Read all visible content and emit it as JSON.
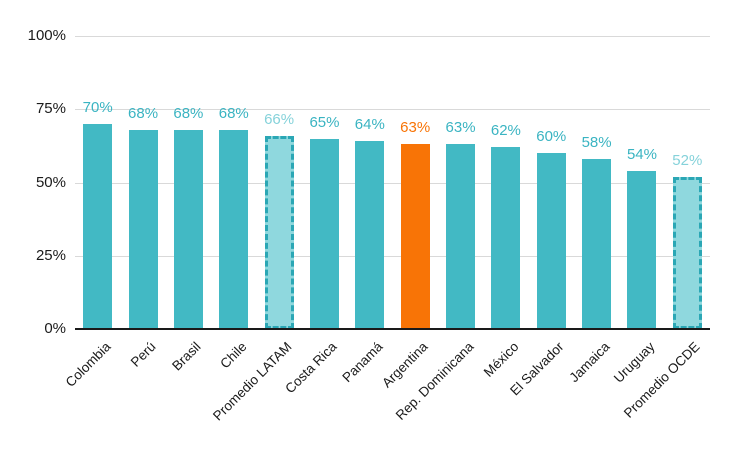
{
  "chart_data": {
    "type": "bar",
    "title": "",
    "xlabel": "",
    "ylabel": "",
    "categories": [
      "Colombia",
      "Perú",
      "Brasil",
      "Chile",
      "Promedio LATAM",
      "Costa Rica",
      "Panamá",
      "Argentina",
      "Rep. Dominicana",
      "México",
      "El Salvador",
      "Jamaica",
      "Uruguay",
      "Promedio OCDE"
    ],
    "values": [
      70,
      68,
      68,
      68,
      66,
      65,
      64,
      63,
      63,
      62,
      60,
      58,
      54,
      52
    ],
    "value_labels": [
      "70%",
      "68%",
      "68%",
      "68%",
      "66%",
      "65%",
      "64%",
      "63%",
      "63%",
      "62%",
      "60%",
      "58%",
      "54%",
      "52%"
    ],
    "bar_styles": [
      "normal",
      "normal",
      "normal",
      "normal",
      "average",
      "normal",
      "normal",
      "highlight",
      "normal",
      "normal",
      "normal",
      "normal",
      "normal",
      "average"
    ],
    "highlight_category": "Argentina",
    "average_categories": [
      "Promedio LATAM",
      "Promedio OCDE"
    ],
    "ylim": [
      0,
      100
    ],
    "yticks": [
      0,
      25,
      50,
      75,
      100
    ],
    "ytick_labels": [
      "0%",
      "25%",
      "50%",
      "75%",
      "100%"
    ],
    "grid": true,
    "legend": "none",
    "colors": {
      "bar": "#42b9c4",
      "bar_average_fill": "#8fd8de",
      "bar_average_border": "#2ba7b5",
      "bar_highlight": "#f87406",
      "value_label": "#3ab4c2",
      "value_label_average": "#85d2da",
      "value_label_highlight": "#f87406",
      "gridline": "#d9d9d9",
      "axis_line": "#1a1a1a",
      "tick_text": "#1a1a1a",
      "background": "#ffffff"
    }
  }
}
